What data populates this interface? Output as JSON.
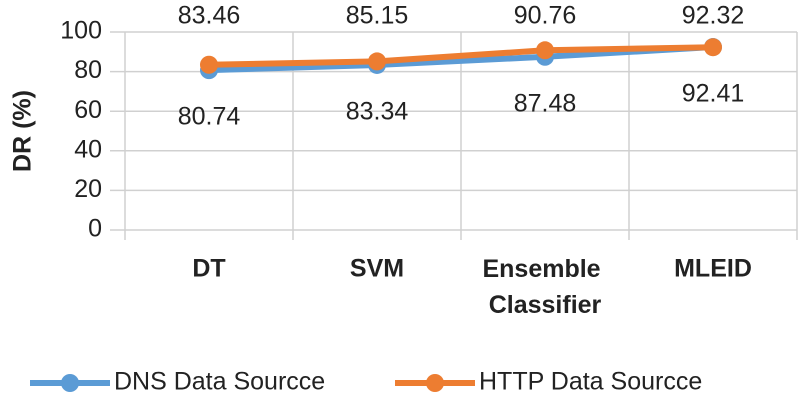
{
  "chart_data": {
    "type": "line",
    "y_label": "DR (%)",
    "categories": [
      "DT",
      "SVM",
      "Ensemble Classifier",
      "MLEID"
    ],
    "series": [
      {
        "name": "DNS Data Sourcce",
        "color": "#5b9bd5",
        "values": [
          80.74,
          83.34,
          87.48,
          92.41
        ]
      },
      {
        "name": "HTTP Data Sourcce",
        "color": "#ed7d31",
        "values": [
          83.46,
          85.15,
          90.76,
          92.32
        ]
      }
    ],
    "ylim": [
      0,
      100
    ],
    "yticks": [
      0,
      20,
      40,
      60,
      80,
      100
    ],
    "grid": true,
    "legend": "bottom"
  }
}
